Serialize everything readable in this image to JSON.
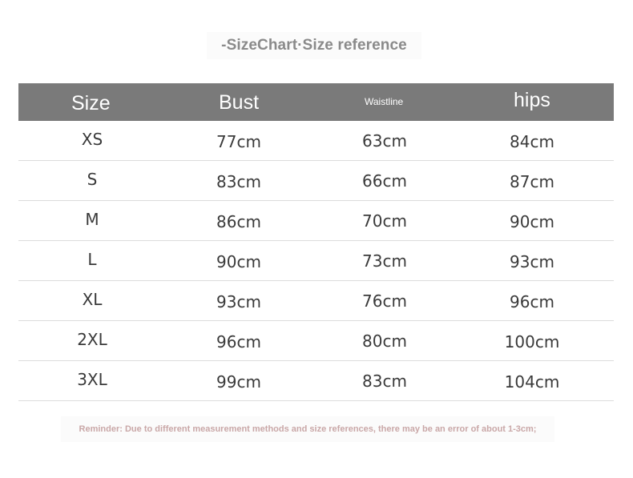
{
  "title": "-SizeChart·Size reference",
  "table": {
    "headers": [
      "Size",
      "Bust",
      "Waistline",
      "hips"
    ],
    "rows": [
      [
        "XS",
        "77cm",
        "63cm",
        "84cm"
      ],
      [
        "S",
        "83cm",
        "66cm",
        "87cm"
      ],
      [
        "M",
        "86cm",
        "70cm",
        "90cm"
      ],
      [
        "L",
        "90cm",
        "73cm",
        "93cm"
      ],
      [
        "XL",
        "93cm",
        "76cm",
        "96cm"
      ],
      [
        "2XL",
        "96cm",
        "80cm",
        "100cm"
      ],
      [
        "3XL",
        "99cm",
        "83cm",
        "104cm"
      ]
    ]
  },
  "reminder": "Reminder: Due to different measurement methods and size references, there may be an error of about 1-3cm;",
  "colors": {
    "header_bg": "#7a7a7a",
    "header_text": "#ffffff",
    "title_text": "#8a8a8a",
    "cell_text": "#3a3a3a",
    "reminder_text": "#c9a7a7",
    "row_divider": "#dcdcdc"
  }
}
